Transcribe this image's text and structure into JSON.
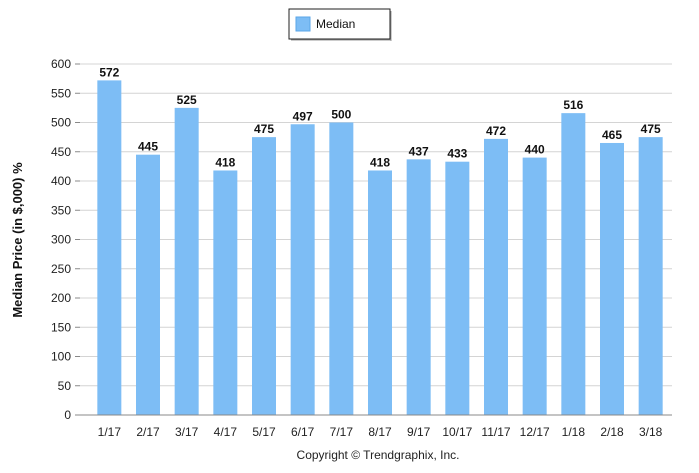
{
  "chart_data": {
    "type": "bar",
    "categories": [
      "1/17",
      "2/17",
      "3/17",
      "4/17",
      "5/17",
      "6/17",
      "7/17",
      "8/17",
      "9/17",
      "10/17",
      "11/17",
      "12/17",
      "1/18",
      "2/18",
      "3/18"
    ],
    "series": [
      {
        "name": "Median",
        "values": [
          572,
          445,
          525,
          418,
          475,
          497,
          500,
          418,
          437,
          433,
          472,
          440,
          516,
          465,
          475
        ]
      }
    ],
    "title": "",
    "xlabel": "",
    "ylabel": "Median Price (in $,000) %",
    "ylim": [
      0,
      600
    ],
    "yticks": [
      0,
      50,
      100,
      150,
      200,
      250,
      300,
      350,
      400,
      450,
      500,
      550,
      600
    ],
    "grid": true,
    "legend_position": "top-center",
    "bar_color": "#7dbdf5",
    "footer": "Copyright © Trendgraphix, Inc."
  }
}
